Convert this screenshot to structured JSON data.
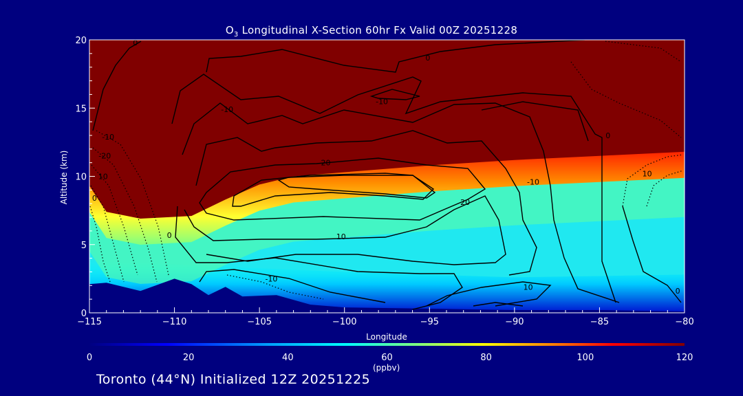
{
  "title": {
    "species": "O",
    "species_sub": "3",
    "text": " Longitudinal X-Section 60hr  Fx Valid 00Z 20251228"
  },
  "footer": "Toronto (44°N) Initialized 12Z 20251225",
  "colorbar": {
    "min": 0,
    "max": 120,
    "tick_labels": [
      "0",
      "20",
      "40",
      "60",
      "80",
      "100",
      "120"
    ],
    "units": "(ppbv)",
    "colors": [
      "#000080",
      "#0000ff",
      "#00a0ff",
      "#00ffff",
      "#7fff7f",
      "#ffff00",
      "#ff7f00",
      "#ff0000",
      "#800000"
    ]
  },
  "colors": {
    "background": "#00007f",
    "text": "#ffffff",
    "contour": "#000000",
    "terrain": "#00007f"
  },
  "chart_data": {
    "type": "heatmap",
    "xlabel": "Longitude",
    "ylabel": "Altitude (km)",
    "xlim": [
      -115,
      -80
    ],
    "ylim": [
      0,
      20
    ],
    "x_ticks": [
      -115,
      -110,
      -105,
      -100,
      -95,
      -90,
      -85,
      -80
    ],
    "x_tick_labels": [
      "−115",
      "−110",
      "−105",
      "−100",
      "−95",
      "−90",
      "−85",
      "−80"
    ],
    "y_ticks": [
      0,
      5,
      10,
      15,
      20
    ],
    "y_tick_labels": [
      "0",
      "5",
      "10",
      "15",
      "20"
    ],
    "field": "O3 concentration (ppbv)",
    "tropopause_height_km": [
      {
        "lon": -115,
        "alt": 9.3
      },
      {
        "lon": -114,
        "alt": 7.4
      },
      {
        "lon": -112,
        "alt": 6.9
      },
      {
        "lon": -109,
        "alt": 7.1
      },
      {
        "lon": -107,
        "alt": 8.3
      },
      {
        "lon": -105,
        "alt": 9.4
      },
      {
        "lon": -103,
        "alt": 10.0
      },
      {
        "lon": -100,
        "alt": 10.3
      },
      {
        "lon": -95,
        "alt": 10.8
      },
      {
        "lon": -90,
        "alt": 11.2
      },
      {
        "lon": -85,
        "alt": 11.5
      },
      {
        "lon": -80,
        "alt": 11.8
      }
    ],
    "terrain_height_km": [
      {
        "lon": -115,
        "alt": 2.1
      },
      {
        "lon": -114,
        "alt": 2.2
      },
      {
        "lon": -112,
        "alt": 1.6
      },
      {
        "lon": -110,
        "alt": 2.5
      },
      {
        "lon": -109,
        "alt": 2.1
      },
      {
        "lon": -108,
        "alt": 1.3
      },
      {
        "lon": -107,
        "alt": 1.9
      },
      {
        "lon": -106,
        "alt": 1.2
      },
      {
        "lon": -104,
        "alt": 1.3
      },
      {
        "lon": -102,
        "alt": 0.6
      },
      {
        "lon": -100,
        "alt": 0.4
      },
      {
        "lon": -95,
        "alt": 0.3
      },
      {
        "lon": -90,
        "alt": 0.2
      },
      {
        "lon": -85,
        "alt": 0.2
      },
      {
        "lon": -80,
        "alt": 0.1
      }
    ],
    "contour_labels": [
      {
        "text": "0",
        "lon": -112.3,
        "alt": 19.6
      },
      {
        "text": "0",
        "lon": -95.1,
        "alt": 18.5
      },
      {
        "text": "-10",
        "lon": -97.8,
        "alt": 15.3
      },
      {
        "text": "-10",
        "lon": -106.9,
        "alt": 14.7
      },
      {
        "text": "-10",
        "lon": -113.9,
        "alt": 12.7
      },
      {
        "text": "-20",
        "lon": -114.1,
        "alt": 11.3
      },
      {
        "text": "20",
        "lon": -101.1,
        "alt": 10.8
      },
      {
        "text": "10",
        "lon": -114.2,
        "alt": 9.8
      },
      {
        "text": "0",
        "lon": -84.5,
        "alt": 12.8
      },
      {
        "text": "-10",
        "lon": -88.9,
        "alt": 9.4
      },
      {
        "text": "20",
        "lon": -92.9,
        "alt": 7.9
      },
      {
        "text": "10",
        "lon": -82.2,
        "alt": 10.0
      },
      {
        "text": "0",
        "lon": -114.7,
        "alt": 8.2
      },
      {
        "text": "0",
        "lon": -110.3,
        "alt": 5.5
      },
      {
        "text": "10",
        "lon": -100.2,
        "alt": 5.4
      },
      {
        "text": "-10",
        "lon": -104.3,
        "alt": 2.3
      },
      {
        "text": "10",
        "lon": -89.2,
        "alt": 1.7
      },
      {
        "text": "0",
        "lon": -80.4,
        "alt": 1.4
      }
    ]
  }
}
